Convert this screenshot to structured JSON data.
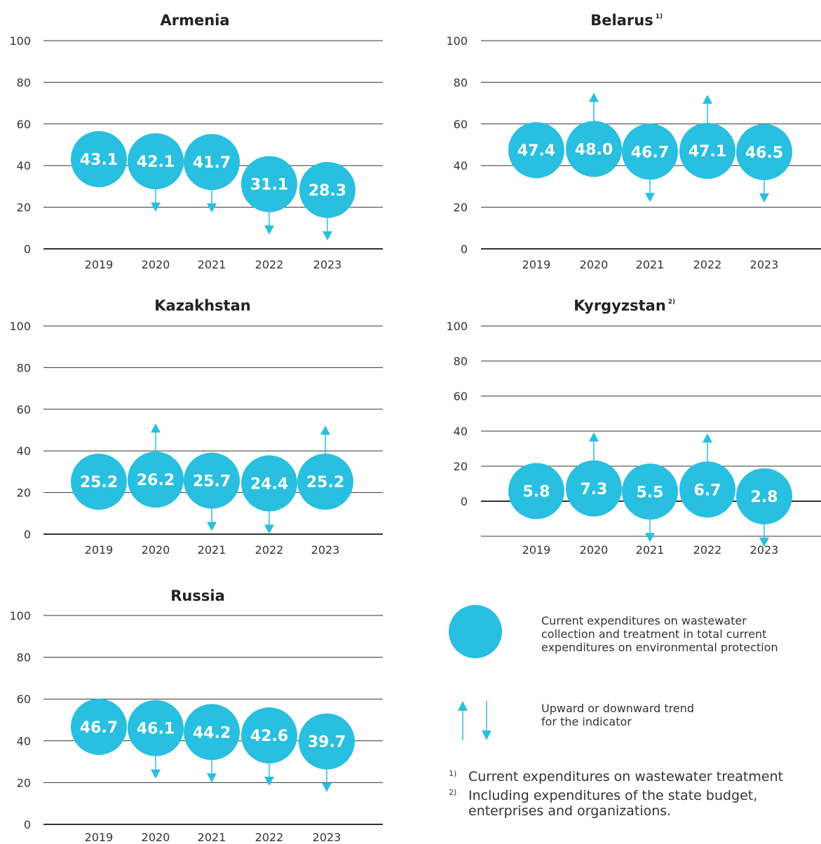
{
  "colors": {
    "bubble": "#28bfe0",
    "arrow": "#28bfe0",
    "grid": "#333333",
    "text": "#333333"
  },
  "chart_data": [
    {
      "type": "bubble",
      "title": "Armenia",
      "footnote_mark": "",
      "categories": [
        "2019",
        "2020",
        "2021",
        "2022",
        "2023"
      ],
      "values": [
        43.1,
        42.1,
        41.7,
        31.1,
        28.3
      ],
      "trend": [
        "",
        "down",
        "down",
        "down",
        "down"
      ],
      "yticks": [
        "0",
        "20",
        "40",
        "60",
        "80",
        "100"
      ],
      "ylim": [
        0,
        100
      ]
    },
    {
      "type": "bubble",
      "title": "Belarus",
      "footnote_mark": "1)",
      "categories": [
        "2019",
        "2020",
        "2021",
        "2022",
        "2023"
      ],
      "values": [
        47.4,
        48.0,
        46.7,
        47.1,
        46.5
      ],
      "trend": [
        "",
        "up",
        "down",
        "up",
        "down"
      ],
      "yticks": [
        "0",
        "20",
        "40",
        "60",
        "80",
        "100"
      ],
      "ylim": [
        0,
        100
      ]
    },
    {
      "type": "bubble",
      "title": "Kazakhstan",
      "footnote_mark": "",
      "categories": [
        "2019",
        "2020",
        "2021",
        "2022",
        "2023"
      ],
      "values": [
        25.2,
        26.2,
        25.7,
        24.4,
        25.2
      ],
      "trend": [
        "",
        "up",
        "down",
        "down",
        "up"
      ],
      "yticks": [
        "0",
        "20",
        "40",
        "60",
        "80",
        "100"
      ],
      "ylim": [
        0,
        100
      ]
    },
    {
      "type": "bubble",
      "title": "Kyrgyzstan",
      "footnote_mark": "2)",
      "categories": [
        "2019",
        "2020",
        "2021",
        "2022",
        "2023"
      ],
      "values": [
        5.8,
        7.3,
        5.5,
        6.7,
        2.8
      ],
      "trend": [
        "",
        "up",
        "down",
        "up",
        "down"
      ],
      "yticks": [
        "0",
        "20",
        "40",
        "60",
        "80",
        "100"
      ],
      "ylim": [
        -20,
        100
      ]
    },
    {
      "type": "bubble",
      "title": "Russia",
      "footnote_mark": "",
      "categories": [
        "2019",
        "2020",
        "2021",
        "2022",
        "2023"
      ],
      "values": [
        46.7,
        46.1,
        44.2,
        42.6,
        39.7
      ],
      "trend": [
        "",
        "down",
        "down",
        "down",
        "down"
      ],
      "yticks": [
        "0",
        "20",
        "40",
        "60",
        "80",
        "100"
      ],
      "ylim": [
        0,
        100
      ]
    }
  ],
  "legend": {
    "circle_text": [
      "Current expenditures on wastewater",
      "collection and treatment in total current",
      "expenditures on environmental protection"
    ],
    "arrow_text": [
      "Upward or downward trend",
      "for the indicator"
    ]
  },
  "footnotes": [
    {
      "mark": "1)",
      "lines": [
        "Current expenditures on wastewater treatment"
      ]
    },
    {
      "mark": "2)",
      "lines": [
        "Including expenditures of the state budget,",
        "enterprises and organizations."
      ]
    }
  ]
}
